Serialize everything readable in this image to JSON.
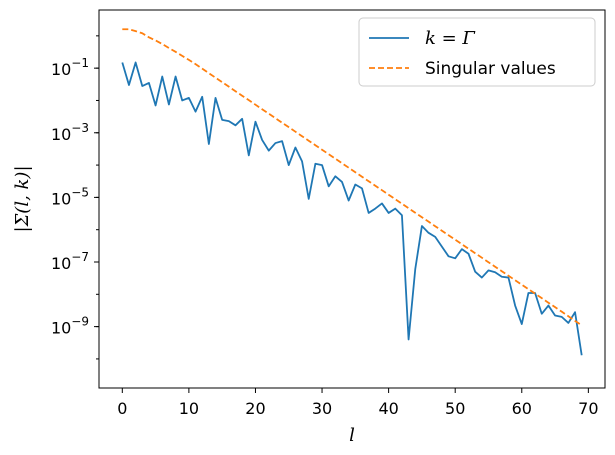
{
  "chart_data": {
    "type": "line",
    "xlabel": "l",
    "ylabel": "|Σ(l, k)|",
    "xlim": [
      -3.5,
      72.5
    ],
    "ylim_log10": [
      -10.9,
      0.8
    ],
    "yscale": "log",
    "xticks": [
      0,
      10,
      20,
      30,
      40,
      50,
      60,
      70
    ],
    "yticks_exp": [
      -9,
      -7,
      -5,
      -3,
      -1
    ],
    "ytick_base": "10",
    "legend_position": "top-right",
    "grid": false,
    "series": [
      {
        "name": "k = Γ",
        "color": "#1f77b4",
        "style": "solid",
        "x": [
          0,
          1,
          2,
          3,
          4,
          5,
          6,
          7,
          8,
          9,
          10,
          11,
          12,
          13,
          14,
          15,
          16,
          17,
          18,
          19,
          20,
          21,
          22,
          23,
          24,
          25,
          26,
          27,
          28,
          29,
          30,
          31,
          32,
          33,
          34,
          35,
          36,
          37,
          38,
          39,
          40,
          41,
          42,
          43,
          44,
          45,
          46,
          47,
          48,
          49,
          50,
          51,
          52,
          53,
          54,
          55,
          56,
          57,
          58,
          59,
          60,
          61,
          62,
          63,
          64,
          65,
          66,
          67,
          68,
          69
        ],
        "y": [
          0.15,
          0.03,
          0.15,
          0.028,
          0.035,
          0.007,
          0.055,
          0.0075,
          0.055,
          0.01,
          0.012,
          0.0045,
          0.013,
          0.00045,
          0.012,
          0.0025,
          0.0023,
          0.0017,
          0.0027,
          0.0002,
          0.0022,
          0.0006,
          0.00028,
          0.00048,
          0.00055,
          0.0001,
          0.00035,
          0.00013,
          9e-06,
          0.00011,
          0.0001,
          2.2e-05,
          4.5e-05,
          3e-05,
          8e-06,
          2.5e-05,
          1.9e-05,
          3.3e-06,
          4.5e-06,
          6.5e-06,
          3.3e-06,
          4.5e-06,
          2.8e-06,
          4e-10,
          6e-08,
          1.3e-06,
          8e-07,
          6e-07,
          3e-07,
          1.5e-07,
          1.3e-07,
          2.5e-07,
          1.8e-07,
          5e-08,
          3.3e-08,
          5.5e-08,
          4.8e-08,
          3.5e-08,
          3.3e-08,
          4.5e-09,
          1.2e-09,
          1.1e-08,
          1.1e-08,
          2.5e-09,
          4.5e-09,
          2.2e-09,
          2e-09,
          1.3e-09,
          2.8e-09,
          1.3e-10
        ]
      },
      {
        "name": "Singular values",
        "color": "#ff7f0e",
        "style": "dashed",
        "x": [
          0,
          1,
          2,
          3,
          4,
          5,
          6,
          7,
          8,
          9,
          10,
          11,
          12,
          13,
          14,
          15,
          16,
          17,
          18,
          19,
          20,
          21,
          22,
          23,
          24,
          25,
          26,
          27,
          28,
          29,
          30,
          31,
          32,
          33,
          34,
          35,
          36,
          37,
          38,
          39,
          40,
          41,
          42,
          43,
          44,
          45,
          46,
          47,
          48,
          49,
          50,
          51,
          52,
          53,
          54,
          55,
          56,
          57,
          58,
          59,
          60,
          61,
          62,
          63,
          64,
          65,
          66,
          67,
          68,
          69
        ],
        "y": [
          1.6,
          1.6,
          1.4,
          1.2,
          0.9,
          0.72,
          0.56,
          0.42,
          0.32,
          0.24,
          0.18,
          0.133,
          0.097,
          0.07,
          0.0508,
          0.0368,
          0.0267,
          0.0193,
          0.014,
          0.0102,
          0.0074,
          0.00536,
          0.0039,
          0.00283,
          0.00205,
          0.00149,
          0.00108,
          0.000783,
          0.000568,
          0.000412,
          0.000299,
          0.000217,
          0.000158,
          0.000114,
          8.29e-05,
          6.01e-05,
          4.36e-05,
          3.17e-05,
          2.3e-05,
          1.67e-05,
          1.21e-05,
          8.77e-06,
          6.37e-06,
          4.62e-06,
          3.35e-06,
          2.43e-06,
          1.77e-06,
          1.28e-06,
          9.3e-07,
          6.75e-07,
          4.9e-07,
          3.55e-07,
          2.58e-07,
          1.87e-07,
          1.36e-07,
          9.86e-08,
          7.15e-08,
          5.19e-08,
          3.77e-08,
          2.73e-08,
          1.98e-08,
          1.44e-08,
          1.05e-08,
          7.6e-09,
          5.5e-09,
          4e-09,
          2.9e-09,
          2.1e-09,
          1.5e-09,
          1.1e-09
        ]
      }
    ]
  }
}
